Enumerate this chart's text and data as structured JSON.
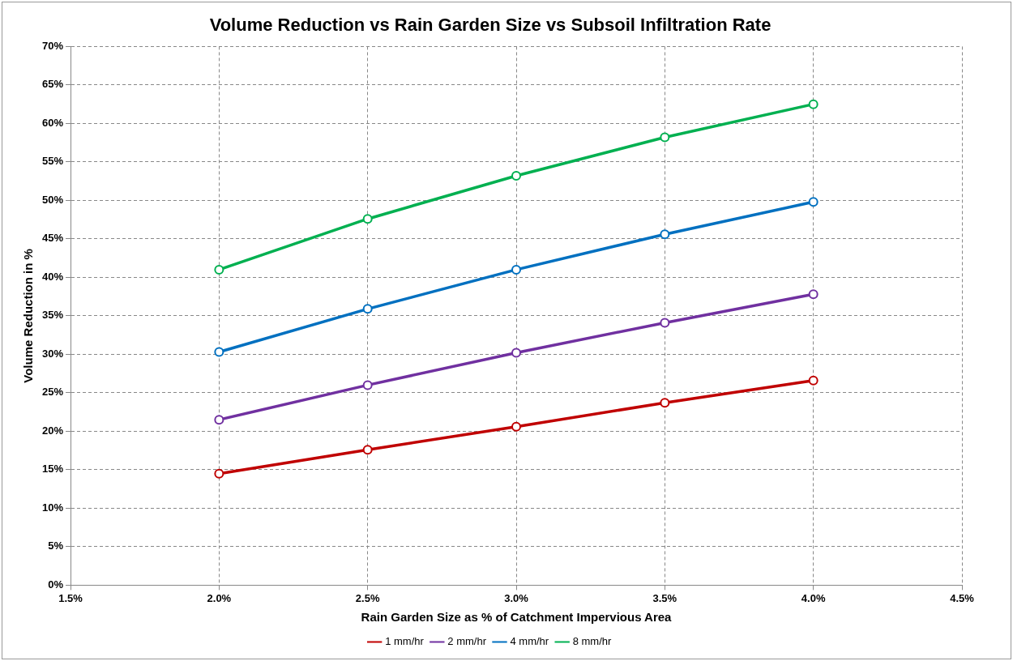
{
  "chart_data": {
    "type": "line",
    "title": "Volume Reduction vs Rain Garden Size vs Subsoil Infiltration Rate",
    "xlabel": "Rain Garden Size as % of Catchment Impervious Area",
    "ylabel": "Volume Reduction in %",
    "x": [
      2.0,
      2.5,
      3.0,
      3.5,
      4.0
    ],
    "series": [
      {
        "name": "1 mm/hr",
        "color": "#c00000",
        "values": [
          14.5,
          17.6,
          20.6,
          23.7,
          26.6
        ]
      },
      {
        "name": "2 mm/hr",
        "color": "#7030a0",
        "values": [
          21.5,
          26.0,
          30.2,
          34.1,
          37.8
        ]
      },
      {
        "name": "4 mm/hr",
        "color": "#0070c0",
        "values": [
          30.3,
          35.9,
          41.0,
          45.6,
          49.8
        ]
      },
      {
        "name": "8 mm/hr",
        "color": "#00b050",
        "values": [
          41.0,
          47.6,
          53.2,
          58.2,
          62.5
        ]
      }
    ],
    "xlim": [
      1.5,
      4.5
    ],
    "xticks": [
      {
        "value": 1.5,
        "label": "1.5%"
      },
      {
        "value": 2.0,
        "label": "2.0%"
      },
      {
        "value": 2.5,
        "label": "2.5%"
      },
      {
        "value": 3.0,
        "label": "3.0%"
      },
      {
        "value": 3.5,
        "label": "3.5%"
      },
      {
        "value": 4.0,
        "label": "4.0%"
      },
      {
        "value": 4.5,
        "label": "4.5%"
      }
    ],
    "ylim": [
      0,
      70
    ],
    "yticks": [
      {
        "value": 0,
        "label": "0%"
      },
      {
        "value": 5,
        "label": "5%"
      },
      {
        "value": 10,
        "label": "10%"
      },
      {
        "value": 15,
        "label": "15%"
      },
      {
        "value": 20,
        "label": "20%"
      },
      {
        "value": 25,
        "label": "25%"
      },
      {
        "value": 30,
        "label": "30%"
      },
      {
        "value": 35,
        "label": "35%"
      },
      {
        "value": 40,
        "label": "40%"
      },
      {
        "value": 45,
        "label": "45%"
      },
      {
        "value": 50,
        "label": "50%"
      },
      {
        "value": 55,
        "label": "55%"
      },
      {
        "value": 60,
        "label": "60%"
      },
      {
        "value": 65,
        "label": "65%"
      },
      {
        "value": 70,
        "label": "70%"
      }
    ],
    "grid": true,
    "legend": "bottom",
    "marker": "circle",
    "line_style": "solid"
  }
}
